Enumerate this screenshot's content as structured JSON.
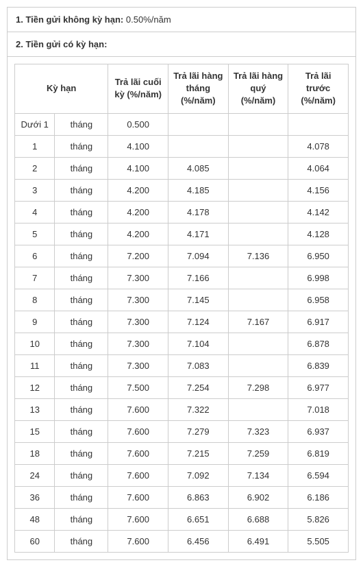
{
  "section1": {
    "label": "1. Tiền gửi không kỳ hạn:",
    "value": "0.50%/năm"
  },
  "section2": {
    "label": "2. Tiền gửi có kỳ hạn:"
  },
  "headers": {
    "term": "Kỳ hạn",
    "end": "Trả lãi cuối kỳ (%/năm)",
    "monthly": "Trả lãi hàng tháng (%/năm)",
    "quarterly": "Trả lãi hàng quý (%/năm)",
    "advance": "Trả lãi trước (%/năm)"
  },
  "rows": [
    {
      "num": "Dưới 1",
      "unit": "tháng",
      "end": "0.500",
      "monthly": "",
      "quarterly": "",
      "advance": ""
    },
    {
      "num": "1",
      "unit": "tháng",
      "end": "4.100",
      "monthly": "",
      "quarterly": "",
      "advance": "4.078"
    },
    {
      "num": "2",
      "unit": "tháng",
      "end": "4.100",
      "monthly": "4.085",
      "quarterly": "",
      "advance": "4.064"
    },
    {
      "num": "3",
      "unit": "tháng",
      "end": "4.200",
      "monthly": "4.185",
      "quarterly": "",
      "advance": "4.156"
    },
    {
      "num": "4",
      "unit": "tháng",
      "end": "4.200",
      "monthly": "4.178",
      "quarterly": "",
      "advance": "4.142"
    },
    {
      "num": "5",
      "unit": "tháng",
      "end": "4.200",
      "monthly": "4.171",
      "quarterly": "",
      "advance": "4.128"
    },
    {
      "num": "6",
      "unit": "tháng",
      "end": "7.200",
      "monthly": "7.094",
      "quarterly": "7.136",
      "advance": "6.950"
    },
    {
      "num": "7",
      "unit": "tháng",
      "end": "7.300",
      "monthly": "7.166",
      "quarterly": "",
      "advance": "6.998"
    },
    {
      "num": "8",
      "unit": "tháng",
      "end": "7.300",
      "monthly": "7.145",
      "quarterly": "",
      "advance": "6.958"
    },
    {
      "num": "9",
      "unit": "tháng",
      "end": "7.300",
      "monthly": "7.124",
      "quarterly": "7.167",
      "advance": "6.917"
    },
    {
      "num": "10",
      "unit": "tháng",
      "end": "7.300",
      "monthly": "7.104",
      "quarterly": "",
      "advance": "6.878"
    },
    {
      "num": "11",
      "unit": "tháng",
      "end": "7.300",
      "monthly": "7.083",
      "quarterly": "",
      "advance": "6.839"
    },
    {
      "num": "12",
      "unit": "tháng",
      "end": "7.500",
      "monthly": "7.254",
      "quarterly": "7.298",
      "advance": "6.977"
    },
    {
      "num": "13",
      "unit": "tháng",
      "end": "7.600",
      "monthly": "7.322",
      "quarterly": "",
      "advance": "7.018"
    },
    {
      "num": "15",
      "unit": "tháng",
      "end": "7.600",
      "monthly": "7.279",
      "quarterly": "7.323",
      "advance": "6.937"
    },
    {
      "num": "18",
      "unit": "tháng",
      "end": "7.600",
      "monthly": "7.215",
      "quarterly": "7.259",
      "advance": "6.819"
    },
    {
      "num": "24",
      "unit": "tháng",
      "end": "7.600",
      "monthly": "7.092",
      "quarterly": "7.134",
      "advance": "6.594"
    },
    {
      "num": "36",
      "unit": "tháng",
      "end": "7.600",
      "monthly": "6.863",
      "quarterly": "6.902",
      "advance": "6.186"
    },
    {
      "num": "48",
      "unit": "tháng",
      "end": "7.600",
      "monthly": "6.651",
      "quarterly": "6.688",
      "advance": "5.826"
    },
    {
      "num": "60",
      "unit": "tháng",
      "end": "7.600",
      "monthly": "6.456",
      "quarterly": "6.491",
      "advance": "5.505"
    }
  ]
}
